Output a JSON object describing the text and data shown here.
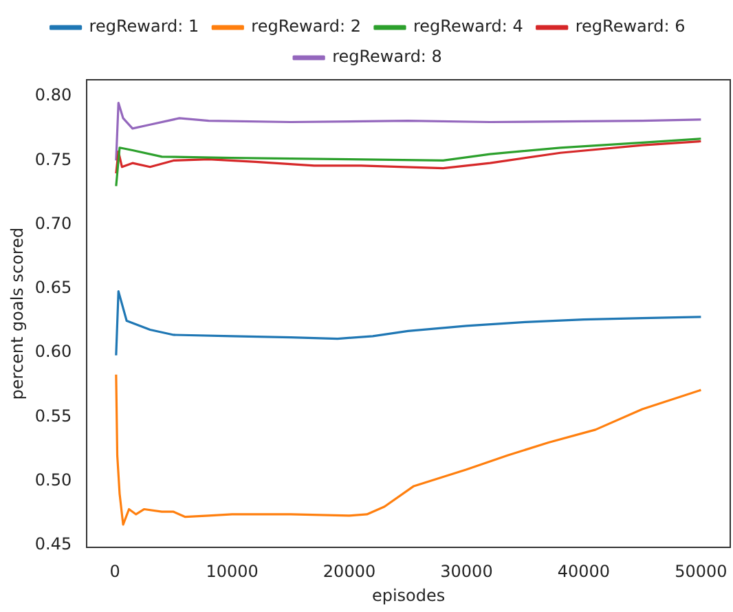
{
  "chart_data": {
    "type": "line",
    "xlabel": "episodes",
    "ylabel": "percent goals scored",
    "legend": "top",
    "grid": false,
    "marker": "none",
    "line_style": "solid",
    "xlim": [
      -2400,
      52500
    ],
    "xticks": [
      0,
      10000,
      20000,
      30000,
      40000,
      50000
    ],
    "ylim": [
      0.448,
      0.813
    ],
    "yticks": [
      {
        "value": 0.45,
        "label": "0.45"
      },
      {
        "value": 0.5,
        "label": "0.50"
      },
      {
        "value": 0.55,
        "label": "0.55"
      },
      {
        "value": 0.6,
        "label": "0.60"
      },
      {
        "value": 0.65,
        "label": "0.65"
      },
      {
        "value": 0.7,
        "label": "0.70"
      },
      {
        "value": 0.75,
        "label": "0.75"
      },
      {
        "value": 0.8,
        "label": "0.80"
      }
    ],
    "series": [
      {
        "name": "regReward: 1",
        "color": "#1f77b4",
        "x": [
          100,
          300,
          1000,
          3000,
          5000,
          10000,
          15000,
          19000,
          22000,
          25000,
          30000,
          35000,
          40000,
          45000,
          50000
        ],
        "values": [
          0.598,
          0.648,
          0.625,
          0.618,
          0.614,
          0.613,
          0.612,
          0.611,
          0.613,
          0.617,
          0.621,
          0.624,
          0.626,
          0.627,
          0.628
        ]
      },
      {
        "name": "regReward: 2",
        "color": "#ff7f0e",
        "x": [
          100,
          200,
          400,
          700,
          1200,
          1800,
          2500,
          4000,
          5000,
          6000,
          8000,
          10000,
          15000,
          20000,
          21500,
          23000,
          25500,
          30000,
          33500,
          37000,
          41000,
          45000,
          50000
        ],
        "values": [
          0.583,
          0.52,
          0.49,
          0.466,
          0.478,
          0.474,
          0.478,
          0.476,
          0.476,
          0.472,
          0.473,
          0.474,
          0.474,
          0.473,
          0.474,
          0.48,
          0.496,
          0.509,
          0.52,
          0.53,
          0.54,
          0.556,
          0.571
        ]
      },
      {
        "name": "regReward: 4",
        "color": "#2ca02c",
        "x": [
          100,
          400,
          1500,
          4000,
          10000,
          20000,
          28000,
          32000,
          38000,
          45000,
          50000
        ],
        "values": [
          0.73,
          0.76,
          0.758,
          0.753,
          0.752,
          0.751,
          0.75,
          0.755,
          0.76,
          0.764,
          0.767
        ]
      },
      {
        "name": "regReward: 6",
        "color": "#d62728",
        "x": [
          100,
          300,
          600,
          1500,
          3000,
          5000,
          8000,
          12000,
          17000,
          21000,
          28000,
          32000,
          38000,
          45000,
          50000
        ],
        "values": [
          0.74,
          0.757,
          0.745,
          0.748,
          0.745,
          0.75,
          0.751,
          0.749,
          0.746,
          0.746,
          0.744,
          0.748,
          0.756,
          0.762,
          0.765
        ]
      },
      {
        "name": "regReward: 8",
        "color": "#9467bd",
        "x": [
          100,
          300,
          700,
          1500,
          3000,
          5500,
          8000,
          15000,
          25000,
          32000,
          45000,
          50000
        ],
        "values": [
          0.75,
          0.795,
          0.783,
          0.775,
          0.778,
          0.783,
          0.781,
          0.78,
          0.781,
          0.78,
          0.781,
          0.782
        ]
      }
    ]
  }
}
